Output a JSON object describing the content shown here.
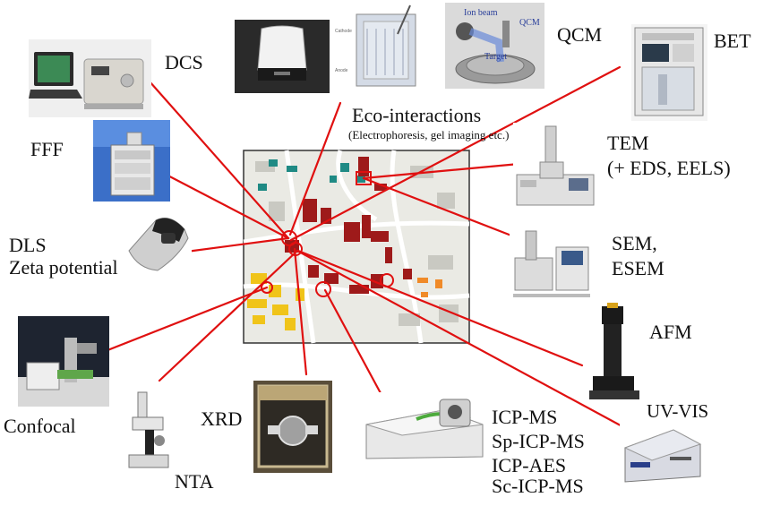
{
  "labels": {
    "dcs": "DCS",
    "fff": "FFF",
    "dls_zeta": [
      "DLS",
      "Zeta potential"
    ],
    "confocal": "Confocal",
    "nta": "NTA",
    "xrd": "XRD",
    "icp_group": [
      "ICP-MS",
      "Sp-ICP-MS",
      "ICP-AES",
      "Sc-ICP-MS"
    ],
    "uv_vis": "UV-VIS",
    "afm": "AFM",
    "sem": [
      "SEM,",
      "ESEM"
    ],
    "tem": [
      "TEM",
      "(+ EDS, EELS)"
    ],
    "bet": "BET",
    "qcm": "QCM",
    "eco": "Eco-interactions",
    "eco_sub": "(Electrophoresis, gel imaging etc.)",
    "qcm_photo_text": [
      "Ion beam",
      "QCM",
      "Target"
    ]
  },
  "colors": {
    "connector": "#e01010",
    "campus_bg": "#eaeae4",
    "building_red": "#9e1a1a",
    "building_yellow": "#f0c419",
    "building_teal": "#1f8a84",
    "building_orange": "#f08a28",
    "building_gray": "#c9c9c2"
  }
}
